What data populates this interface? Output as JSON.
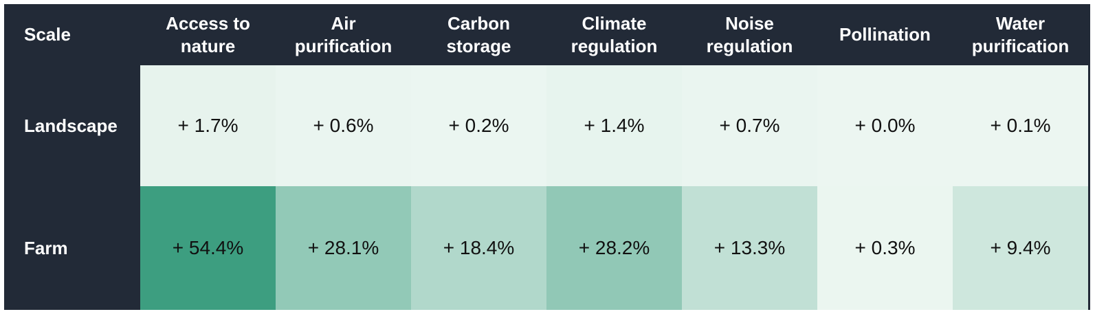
{
  "chart_data": {
    "type": "heatmap",
    "corner_label": "Scale",
    "columns": [
      [
        "Access to",
        "nature"
      ],
      [
        "Air",
        "purification"
      ],
      [
        "Carbon",
        "storage"
      ],
      [
        "Climate",
        "regulation"
      ],
      [
        "Noise",
        "regulation"
      ],
      [
        "Pollination"
      ],
      [
        "Water",
        "purification"
      ]
    ],
    "rows": [
      {
        "label": "Landscape",
        "values": [
          1.7,
          0.6,
          0.2,
          1.4,
          0.7,
          0.0,
          0.1
        ],
        "display": [
          "+ 1.7%",
          "+ 0.6%",
          "+ 0.2%",
          "+ 1.4%",
          "+ 0.7%",
          "+ 0.0%",
          "+ 0.1%"
        ]
      },
      {
        "label": "Farm",
        "values": [
          54.4,
          28.1,
          18.4,
          28.2,
          13.3,
          0.3,
          9.4
        ],
        "display": [
          "+ 54.4%",
          "+ 28.1%",
          "+ 18.4%",
          "+ 28.2%",
          "+ 13.3%",
          "+ 0.3%",
          "+ 9.4%"
        ]
      }
    ],
    "color_scale": {
      "low": "#ecf6f1",
      "high": "#3d9e80",
      "domain": [
        0,
        54.4
      ]
    },
    "header_background": "#222a37"
  }
}
